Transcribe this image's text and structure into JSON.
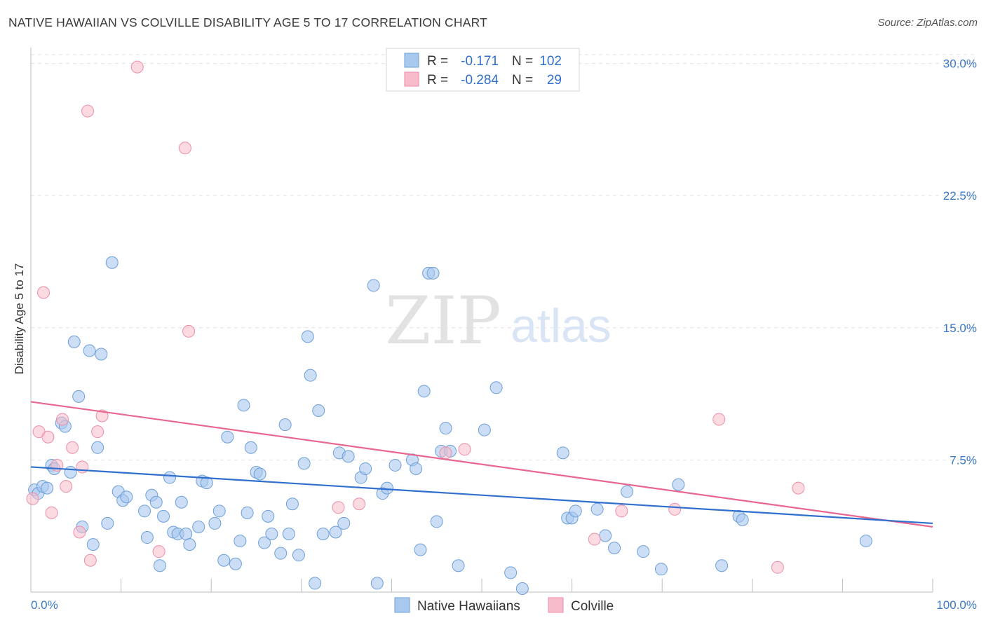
{
  "title": "NATIVE HAWAIIAN VS COLVILLE DISABILITY AGE 5 TO 17 CORRELATION CHART",
  "source": "Source: ZipAtlas.com",
  "watermark": {
    "zip": "ZIP",
    "atlas": "atlas"
  },
  "legend": {
    "rows": [
      {
        "r_label": "R =",
        "r_value": "-0.171",
        "n_label": "N =",
        "n_value": "102"
      },
      {
        "r_label": "R =",
        "r_value": "-0.284",
        "n_label": "N =",
        "n_value": "29"
      }
    ]
  },
  "colors": {
    "blue_fill": "#a9c8ee",
    "blue_stroke": "#6e9fd8",
    "blue_line": "#2f6fce",
    "pink_fill": "#f7bccb",
    "pink_stroke": "#ec8ea8",
    "pink_line": "#e8668f",
    "axis_label": "#3a78c9",
    "value_text": "#2f6fce",
    "grid": "#e0e0e0"
  },
  "chart_data": {
    "type": "scatter",
    "title": "NATIVE HAWAIIAN VS COLVILLE DISABILITY AGE 5 TO 17 CORRELATION CHART",
    "xlabel": "",
    "ylabel": "Disability Age 5 to 17",
    "xlim": [
      0,
      100
    ],
    "ylim": [
      0,
      30.5
    ],
    "x_tick_labels": [
      "0.0%",
      "100.0%"
    ],
    "y_ticks": [
      7.5,
      15.0,
      22.5,
      30.0
    ],
    "y_tick_labels": [
      "7.5%",
      "15.0%",
      "22.5%",
      "30.0%"
    ],
    "grid": true,
    "legend_position": "bottom",
    "series": [
      {
        "name": "Native Hawaiians",
        "color": "#a9c8ee",
        "trend": {
          "x": [
            0,
            100
          ],
          "y": [
            7.1,
            3.9
          ]
        },
        "points": [
          [
            0.4,
            5.8
          ],
          [
            0.8,
            5.6
          ],
          [
            1.3,
            6.0
          ],
          [
            1.8,
            5.9
          ],
          [
            2.3,
            7.2
          ],
          [
            2.6,
            7.0
          ],
          [
            3.4,
            9.6
          ],
          [
            3.8,
            9.4
          ],
          [
            4.4,
            6.8
          ],
          [
            4.8,
            14.2
          ],
          [
            5.3,
            11.1
          ],
          [
            5.7,
            3.7
          ],
          [
            6.5,
            13.7
          ],
          [
            6.9,
            2.7
          ],
          [
            7.4,
            8.2
          ],
          [
            7.8,
            13.5
          ],
          [
            8.5,
            3.9
          ],
          [
            9.0,
            18.7
          ],
          [
            9.7,
            5.7
          ],
          [
            10.2,
            5.2
          ],
          [
            10.6,
            5.4
          ],
          [
            12.6,
            4.6
          ],
          [
            12.9,
            3.1
          ],
          [
            13.4,
            5.5
          ],
          [
            13.9,
            5.1
          ],
          [
            14.3,
            1.5
          ],
          [
            14.7,
            4.3
          ],
          [
            15.4,
            6.5
          ],
          [
            15.8,
            3.4
          ],
          [
            16.3,
            3.3
          ],
          [
            16.7,
            5.1
          ],
          [
            17.2,
            3.3
          ],
          [
            17.6,
            2.7
          ],
          [
            18.6,
            3.7
          ],
          [
            19.0,
            6.3
          ],
          [
            19.5,
            6.2
          ],
          [
            20.4,
            3.9
          ],
          [
            20.9,
            4.6
          ],
          [
            21.4,
            1.8
          ],
          [
            21.8,
            8.8
          ],
          [
            22.7,
            1.6
          ],
          [
            23.2,
            2.9
          ],
          [
            23.6,
            10.6
          ],
          [
            24.0,
            4.5
          ],
          [
            24.4,
            8.2
          ],
          [
            25.0,
            6.8
          ],
          [
            25.4,
            6.7
          ],
          [
            25.9,
            2.8
          ],
          [
            26.3,
            4.3
          ],
          [
            26.7,
            3.3
          ],
          [
            27.7,
            2.2
          ],
          [
            28.2,
            9.5
          ],
          [
            28.6,
            3.3
          ],
          [
            29.0,
            5.0
          ],
          [
            29.7,
            2.1
          ],
          [
            30.3,
            7.3
          ],
          [
            30.7,
            14.5
          ],
          [
            31.0,
            12.3
          ],
          [
            31.5,
            0.5
          ],
          [
            31.9,
            10.3
          ],
          [
            32.4,
            3.3
          ],
          [
            33.8,
            3.4
          ],
          [
            34.2,
            7.9
          ],
          [
            34.7,
            3.9
          ],
          [
            35.2,
            7.7
          ],
          [
            36.6,
            6.5
          ],
          [
            37.1,
            7.0
          ],
          [
            38.0,
            17.4
          ],
          [
            38.4,
            0.5
          ],
          [
            39.0,
            5.6
          ],
          [
            39.5,
            5.9
          ],
          [
            40.4,
            7.2
          ],
          [
            42.3,
            7.5
          ],
          [
            42.7,
            7.0
          ],
          [
            43.2,
            2.4
          ],
          [
            43.6,
            11.4
          ],
          [
            44.1,
            18.1
          ],
          [
            44.6,
            18.1
          ],
          [
            45.0,
            4.0
          ],
          [
            45.5,
            8.0
          ],
          [
            46.0,
            9.3
          ],
          [
            46.5,
            8.0
          ],
          [
            47.4,
            1.5
          ],
          [
            50.3,
            9.2
          ],
          [
            51.6,
            11.6
          ],
          [
            53.2,
            1.1
          ],
          [
            54.5,
            0.2
          ],
          [
            59.0,
            7.9
          ],
          [
            59.5,
            4.2
          ],
          [
            60.0,
            4.2
          ],
          [
            60.4,
            4.6
          ],
          [
            62.8,
            4.7
          ],
          [
            63.7,
            3.2
          ],
          [
            64.7,
            2.5
          ],
          [
            66.1,
            5.7
          ],
          [
            67.9,
            2.3
          ],
          [
            69.9,
            1.3
          ],
          [
            71.8,
            6.1
          ],
          [
            76.6,
            1.5
          ],
          [
            78.5,
            4.3
          ],
          [
            78.9,
            4.1
          ],
          [
            92.6,
            2.9
          ]
        ]
      },
      {
        "name": "Colville",
        "color": "#f7bccb",
        "trend": {
          "x": [
            0,
            100
          ],
          "y": [
            10.8,
            3.7
          ]
        },
        "points": [
          [
            0.2,
            5.3
          ],
          [
            0.9,
            9.1
          ],
          [
            1.4,
            17.0
          ],
          [
            1.9,
            8.8
          ],
          [
            2.3,
            4.5
          ],
          [
            2.9,
            7.2
          ],
          [
            3.5,
            9.8
          ],
          [
            3.9,
            6.0
          ],
          [
            4.6,
            8.2
          ],
          [
            5.4,
            3.4
          ],
          [
            5.7,
            7.1
          ],
          [
            6.3,
            27.3
          ],
          [
            6.6,
            1.8
          ],
          [
            7.4,
            9.1
          ],
          [
            7.9,
            10.0
          ],
          [
            11.8,
            29.8
          ],
          [
            14.2,
            2.3
          ],
          [
            17.1,
            25.2
          ],
          [
            17.5,
            14.8
          ],
          [
            34.1,
            4.8
          ],
          [
            36.4,
            5.0
          ],
          [
            46.0,
            7.9
          ],
          [
            48.1,
            8.1
          ],
          [
            62.5,
            3.0
          ],
          [
            65.5,
            4.6
          ],
          [
            71.4,
            4.7
          ],
          [
            76.3,
            9.8
          ],
          [
            82.8,
            1.4
          ],
          [
            85.1,
            5.9
          ]
        ]
      }
    ]
  }
}
